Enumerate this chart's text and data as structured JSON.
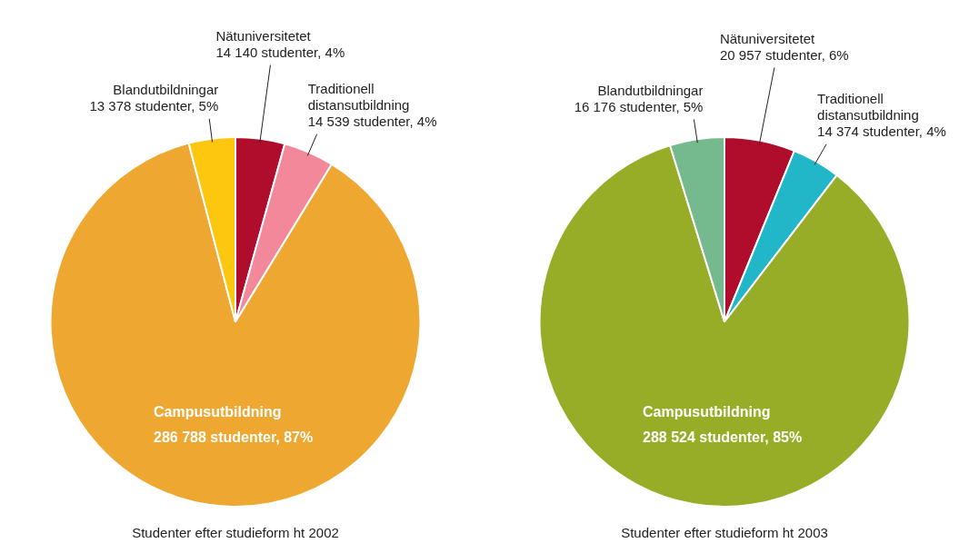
{
  "chart_data": [
    {
      "type": "pie",
      "title": "Studenter efter studieform ht 2002",
      "categories": [
        "Nätuniversitetet",
        "Traditionell distansutbildning",
        "Campusutbildning",
        "Blandutbildningar"
      ],
      "values": [
        14140,
        14539,
        286788,
        13378
      ],
      "colors": [
        "#b00c2c",
        "#f3889b",
        "#eea832",
        "#fdc70f"
      ],
      "value_labels": [
        "14 140 studenter, 4%",
        "14 539 studenter, 4%",
        "286 788 studenter, 87%",
        "13 378 studenter, 5%"
      ],
      "legend": false
    },
    {
      "type": "pie",
      "title": "Studenter efter studieform ht 2003",
      "categories": [
        "Nätuniversitetet",
        "Traditionell distansutbildning",
        "Campusutbildning",
        "Blandutbildningar"
      ],
      "values": [
        20957,
        14374,
        288524,
        16176
      ],
      "colors": [
        "#b00c2c",
        "#22b7c8",
        "#97ad28",
        "#75b98e"
      ],
      "value_labels": [
        "20 957 studenter, 6%",
        "14 374 studenter, 4%",
        "288 524 studenter, 85%",
        "16 176 studenter, 5%"
      ],
      "legend": false
    }
  ]
}
